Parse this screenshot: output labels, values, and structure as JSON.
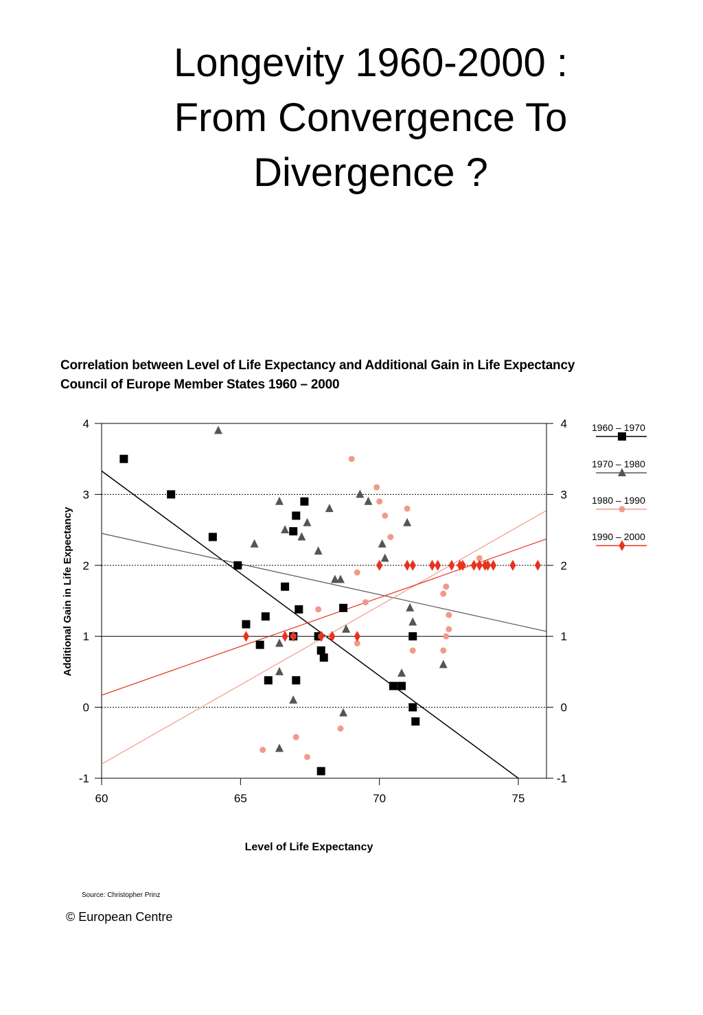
{
  "slide": {
    "title_lines": [
      "Longevity 1960-2000 :",
      "From Convergence To",
      "Divergence ?"
    ]
  },
  "footer": {
    "source": "Source: Christopher Prinz",
    "copyright": "© European Centre"
  },
  "colors": {
    "s1960": "#000000",
    "s1970": "#555555",
    "s1980": "#f29a88",
    "s1990": "#e8321c"
  },
  "chart_data": {
    "type": "scatter",
    "title_lines": [
      "Correlation between Level of Life Expectancy and Additional Gain in Life Expectancy",
      "Council of Europe Member States 1960 – 2000"
    ],
    "xlabel": "Level of Life Expectancy",
    "ylabel": "Additional Gain in Life Expectancy",
    "xlim": [
      60,
      76
    ],
    "ylim": [
      -1,
      4
    ],
    "xticks": [
      60,
      65,
      70,
      75
    ],
    "yticks": [
      -1,
      0,
      1,
      2,
      3,
      4
    ],
    "gridlines": [
      0,
      1,
      2,
      3
    ],
    "legend_position": "right",
    "series": [
      {
        "name": "1960 – 1970",
        "marker": "square",
        "color": "#000000",
        "points": [
          [
            60.8,
            3.5
          ],
          [
            62.5,
            3.0
          ],
          [
            64.0,
            2.4
          ],
          [
            64.9,
            2.0
          ],
          [
            65.2,
            1.17
          ],
          [
            65.7,
            0.88
          ],
          [
            65.9,
            1.28
          ],
          [
            66.0,
            0.38
          ],
          [
            66.6,
            1.7
          ],
          [
            66.9,
            1.0
          ],
          [
            66.9,
            2.48
          ],
          [
            67.0,
            2.7
          ],
          [
            67.1,
            1.38
          ],
          [
            67.3,
            2.9
          ],
          [
            67.0,
            0.38
          ],
          [
            67.8,
            1.0
          ],
          [
            67.9,
            0.8
          ],
          [
            68.0,
            0.7
          ],
          [
            68.7,
            1.4
          ],
          [
            67.9,
            -0.9
          ],
          [
            70.5,
            0.3
          ],
          [
            70.8,
            0.3
          ],
          [
            71.2,
            1.0
          ],
          [
            71.2,
            0.0
          ],
          [
            71.3,
            -0.2
          ]
        ],
        "trend": [
          [
            60,
            3.33
          ],
          [
            75,
            -1.0
          ]
        ]
      },
      {
        "name": "1970 – 1980",
        "marker": "triangle",
        "color": "#555555",
        "points": [
          [
            64.2,
            3.9
          ],
          [
            65.5,
            2.3
          ],
          [
            66.4,
            2.9
          ],
          [
            66.6,
            2.5
          ],
          [
            66.4,
            0.9
          ],
          [
            66.4,
            0.5
          ],
          [
            66.4,
            -0.58
          ],
          [
            66.9,
            0.1
          ],
          [
            67.2,
            2.4
          ],
          [
            67.4,
            2.6
          ],
          [
            67.8,
            2.2
          ],
          [
            68.2,
            2.8
          ],
          [
            68.4,
            1.8
          ],
          [
            68.6,
            1.8
          ],
          [
            68.7,
            -0.08
          ],
          [
            68.8,
            1.1
          ],
          [
            69.3,
            3.0
          ],
          [
            69.6,
            2.9
          ],
          [
            70.1,
            2.3
          ],
          [
            70.2,
            2.1
          ],
          [
            71.0,
            2.6
          ],
          [
            71.1,
            1.4
          ],
          [
            71.2,
            1.2
          ],
          [
            70.8,
            0.48
          ],
          [
            72.3,
            0.6
          ]
        ],
        "trend": [
          [
            60,
            2.45
          ],
          [
            76,
            1.07
          ]
        ]
      },
      {
        "name": "1980 – 1990",
        "marker": "circle",
        "color": "#f29a88",
        "points": [
          [
            69.0,
            3.5
          ],
          [
            69.9,
            3.1
          ],
          [
            70.0,
            2.9
          ],
          [
            70.2,
            2.7
          ],
          [
            70.4,
            2.4
          ],
          [
            71.0,
            2.8
          ],
          [
            69.2,
            1.9
          ],
          [
            69.5,
            1.48
          ],
          [
            67.8,
            1.38
          ],
          [
            66.9,
            1.0
          ],
          [
            67.9,
            1.0
          ],
          [
            69.2,
            0.9
          ],
          [
            65.8,
            -0.6
          ],
          [
            67.0,
            -0.42
          ],
          [
            67.4,
            -0.7
          ],
          [
            68.6,
            -0.3
          ],
          [
            71.2,
            0.8
          ],
          [
            72.3,
            0.8
          ],
          [
            72.4,
            1.0
          ],
          [
            72.5,
            1.1
          ],
          [
            72.5,
            1.3
          ],
          [
            72.3,
            1.6
          ],
          [
            72.4,
            1.7
          ],
          [
            73.6,
            2.1
          ],
          [
            70.0,
            2.0
          ],
          [
            73.0,
            2.0
          ]
        ],
        "trend": [
          [
            60,
            -0.8
          ],
          [
            76,
            2.77
          ]
        ]
      },
      {
        "name": "1990 – 2000",
        "marker": "diamond",
        "color": "#e8321c",
        "points": [
          [
            65.2,
            1.0
          ],
          [
            66.6,
            1.0
          ],
          [
            66.9,
            1.0
          ],
          [
            67.9,
            1.0
          ],
          [
            68.3,
            1.0
          ],
          [
            69.2,
            1.0
          ],
          [
            70.0,
            2.0
          ],
          [
            71.0,
            2.0
          ],
          [
            71.2,
            2.0
          ],
          [
            71.9,
            2.0
          ],
          [
            72.1,
            2.0
          ],
          [
            72.6,
            2.0
          ],
          [
            72.9,
            2.0
          ],
          [
            73.0,
            2.0
          ],
          [
            73.4,
            2.0
          ],
          [
            73.6,
            2.0
          ],
          [
            73.8,
            2.0
          ],
          [
            73.9,
            2.0
          ],
          [
            74.1,
            2.0
          ],
          [
            74.8,
            2.0
          ],
          [
            75.7,
            2.0
          ]
        ],
        "trend": [
          [
            60,
            0.17
          ],
          [
            76,
            2.37
          ]
        ]
      }
    ]
  }
}
